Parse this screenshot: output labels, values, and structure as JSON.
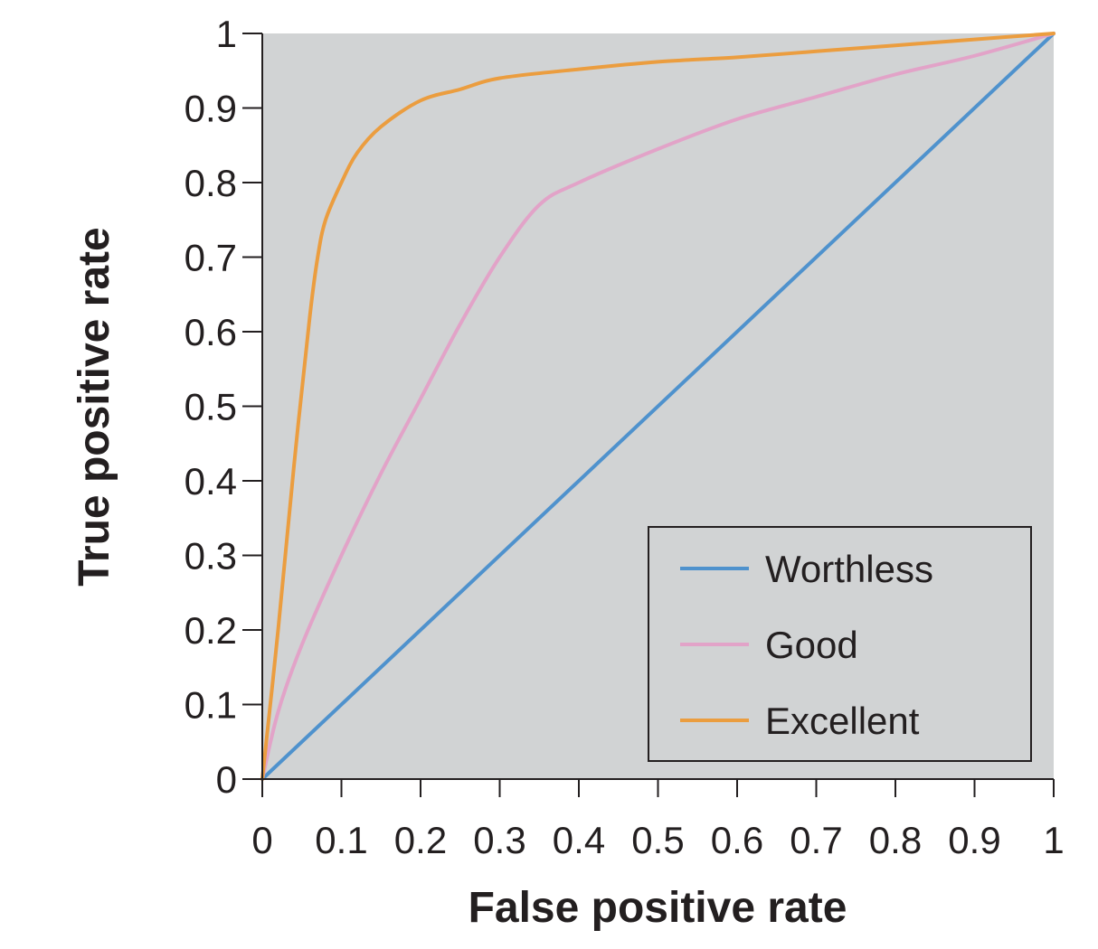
{
  "chart_data": {
    "type": "line",
    "title": "",
    "xlabel": "False positive rate",
    "ylabel": "True positive rate",
    "xlim": [
      0,
      1
    ],
    "ylim": [
      0,
      1
    ],
    "grid": false,
    "plot_background": "#d1d3d4",
    "legend_position": "bottom-right",
    "x_ticks": [
      {
        "value": 0,
        "label": "0"
      },
      {
        "value": 0.1,
        "label": "0.1"
      },
      {
        "value": 0.2,
        "label": "0.2"
      },
      {
        "value": 0.3,
        "label": "0.3"
      },
      {
        "value": 0.4,
        "label": "0.4"
      },
      {
        "value": 0.5,
        "label": "0.5"
      },
      {
        "value": 0.6,
        "label": "0.6"
      },
      {
        "value": 0.7,
        "label": "0.7"
      },
      {
        "value": 0.8,
        "label": "0.8"
      },
      {
        "value": 0.9,
        "label": "0.9"
      },
      {
        "value": 1,
        "label": "1"
      }
    ],
    "y_ticks": [
      {
        "value": 0,
        "label": "0"
      },
      {
        "value": 0.1,
        "label": "0.1"
      },
      {
        "value": 0.2,
        "label": "0.2"
      },
      {
        "value": 0.3,
        "label": "0.3"
      },
      {
        "value": 0.4,
        "label": "0.4"
      },
      {
        "value": 0.5,
        "label": "0.5"
      },
      {
        "value": 0.6,
        "label": "0.6"
      },
      {
        "value": 0.7,
        "label": "0.7"
      },
      {
        "value": 0.8,
        "label": "0.8"
      },
      {
        "value": 0.9,
        "label": "0.9"
      },
      {
        "value": 1,
        "label": "1"
      }
    ],
    "series": [
      {
        "name": "Worthless",
        "color": "#4f92cd",
        "x": [
          0,
          1
        ],
        "y": [
          0,
          1
        ]
      },
      {
        "name": "Good",
        "color": "#e2a3c8",
        "x": [
          0,
          0.02,
          0.05,
          0.1,
          0.15,
          0.2,
          0.25,
          0.3,
          0.35,
          0.4,
          0.5,
          0.6,
          0.7,
          0.8,
          0.9,
          1
        ],
        "y": [
          0,
          0.09,
          0.18,
          0.3,
          0.41,
          0.51,
          0.61,
          0.7,
          0.77,
          0.8,
          0.845,
          0.885,
          0.915,
          0.945,
          0.97,
          1
        ]
      },
      {
        "name": "Excellent",
        "color": "#eb9d3f",
        "x": [
          0,
          0.02,
          0.04,
          0.06,
          0.07,
          0.08,
          0.1,
          0.12,
          0.15,
          0.2,
          0.25,
          0.3,
          0.4,
          0.5,
          0.6,
          0.7,
          0.8,
          0.9,
          1
        ],
        "y": [
          0,
          0.2,
          0.42,
          0.62,
          0.7,
          0.75,
          0.8,
          0.84,
          0.875,
          0.91,
          0.925,
          0.94,
          0.952,
          0.962,
          0.968,
          0.976,
          0.984,
          0.992,
          1
        ]
      }
    ]
  }
}
